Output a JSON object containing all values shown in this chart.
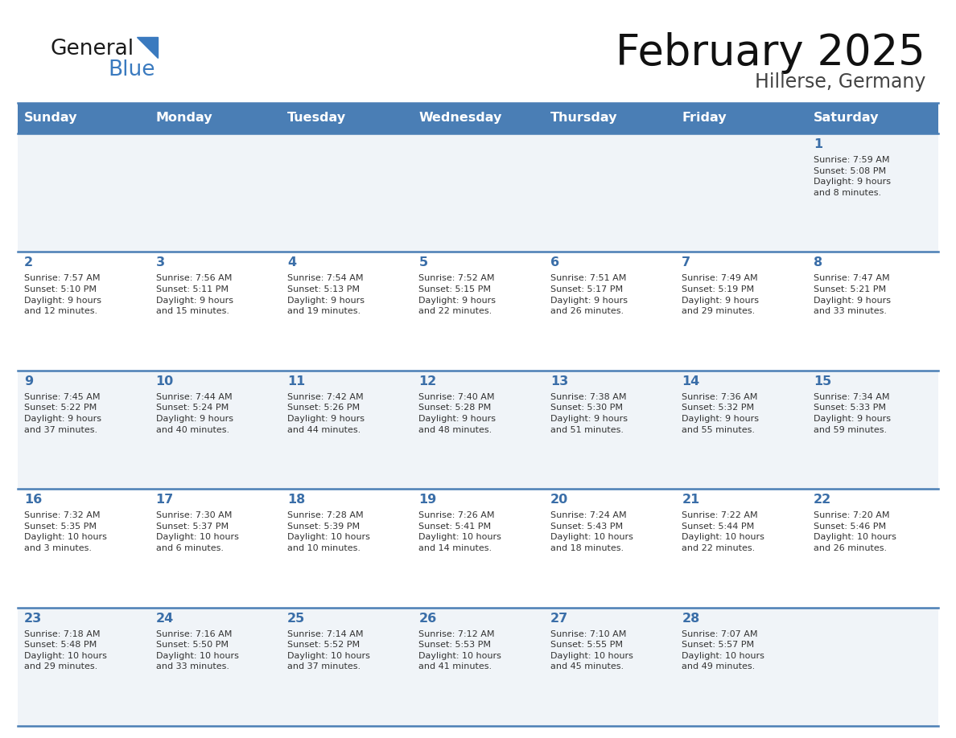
{
  "title": "February 2025",
  "subtitle": "Hillerse, Germany",
  "days_of_week": [
    "Sunday",
    "Monday",
    "Tuesday",
    "Wednesday",
    "Thursday",
    "Friday",
    "Saturday"
  ],
  "header_bg": "#4a7eb5",
  "header_text": "#FFFFFF",
  "row_bg_light": "#f0f4f8",
  "row_bg_white": "#FFFFFF",
  "day_number_color": "#3a6ea8",
  "text_color": "#333333",
  "line_color": "#4a7eb5",
  "calendar_data": [
    [
      null,
      null,
      null,
      null,
      null,
      null,
      {
        "day": 1,
        "sunrise": "7:59 AM",
        "sunset": "5:08 PM",
        "daylight": "9 hours\nand 8 minutes."
      }
    ],
    [
      {
        "day": 2,
        "sunrise": "7:57 AM",
        "sunset": "5:10 PM",
        "daylight": "9 hours\nand 12 minutes."
      },
      {
        "day": 3,
        "sunrise": "7:56 AM",
        "sunset": "5:11 PM",
        "daylight": "9 hours\nand 15 minutes."
      },
      {
        "day": 4,
        "sunrise": "7:54 AM",
        "sunset": "5:13 PM",
        "daylight": "9 hours\nand 19 minutes."
      },
      {
        "day": 5,
        "sunrise": "7:52 AM",
        "sunset": "5:15 PM",
        "daylight": "9 hours\nand 22 minutes."
      },
      {
        "day": 6,
        "sunrise": "7:51 AM",
        "sunset": "5:17 PM",
        "daylight": "9 hours\nand 26 minutes."
      },
      {
        "day": 7,
        "sunrise": "7:49 AM",
        "sunset": "5:19 PM",
        "daylight": "9 hours\nand 29 minutes."
      },
      {
        "day": 8,
        "sunrise": "7:47 AM",
        "sunset": "5:21 PM",
        "daylight": "9 hours\nand 33 minutes."
      }
    ],
    [
      {
        "day": 9,
        "sunrise": "7:45 AM",
        "sunset": "5:22 PM",
        "daylight": "9 hours\nand 37 minutes."
      },
      {
        "day": 10,
        "sunrise": "7:44 AM",
        "sunset": "5:24 PM",
        "daylight": "9 hours\nand 40 minutes."
      },
      {
        "day": 11,
        "sunrise": "7:42 AM",
        "sunset": "5:26 PM",
        "daylight": "9 hours\nand 44 minutes."
      },
      {
        "day": 12,
        "sunrise": "7:40 AM",
        "sunset": "5:28 PM",
        "daylight": "9 hours\nand 48 minutes."
      },
      {
        "day": 13,
        "sunrise": "7:38 AM",
        "sunset": "5:30 PM",
        "daylight": "9 hours\nand 51 minutes."
      },
      {
        "day": 14,
        "sunrise": "7:36 AM",
        "sunset": "5:32 PM",
        "daylight": "9 hours\nand 55 minutes."
      },
      {
        "day": 15,
        "sunrise": "7:34 AM",
        "sunset": "5:33 PM",
        "daylight": "9 hours\nand 59 minutes."
      }
    ],
    [
      {
        "day": 16,
        "sunrise": "7:32 AM",
        "sunset": "5:35 PM",
        "daylight": "10 hours\nand 3 minutes."
      },
      {
        "day": 17,
        "sunrise": "7:30 AM",
        "sunset": "5:37 PM",
        "daylight": "10 hours\nand 6 minutes."
      },
      {
        "day": 18,
        "sunrise": "7:28 AM",
        "sunset": "5:39 PM",
        "daylight": "10 hours\nand 10 minutes."
      },
      {
        "day": 19,
        "sunrise": "7:26 AM",
        "sunset": "5:41 PM",
        "daylight": "10 hours\nand 14 minutes."
      },
      {
        "day": 20,
        "sunrise": "7:24 AM",
        "sunset": "5:43 PM",
        "daylight": "10 hours\nand 18 minutes."
      },
      {
        "day": 21,
        "sunrise": "7:22 AM",
        "sunset": "5:44 PM",
        "daylight": "10 hours\nand 22 minutes."
      },
      {
        "day": 22,
        "sunrise": "7:20 AM",
        "sunset": "5:46 PM",
        "daylight": "10 hours\nand 26 minutes."
      }
    ],
    [
      {
        "day": 23,
        "sunrise": "7:18 AM",
        "sunset": "5:48 PM",
        "daylight": "10 hours\nand 29 minutes."
      },
      {
        "day": 24,
        "sunrise": "7:16 AM",
        "sunset": "5:50 PM",
        "daylight": "10 hours\nand 33 minutes."
      },
      {
        "day": 25,
        "sunrise": "7:14 AM",
        "sunset": "5:52 PM",
        "daylight": "10 hours\nand 37 minutes."
      },
      {
        "day": 26,
        "sunrise": "7:12 AM",
        "sunset": "5:53 PM",
        "daylight": "10 hours\nand 41 minutes."
      },
      {
        "day": 27,
        "sunrise": "7:10 AM",
        "sunset": "5:55 PM",
        "daylight": "10 hours\nand 45 minutes."
      },
      {
        "day": 28,
        "sunrise": "7:07 AM",
        "sunset": "5:57 PM",
        "daylight": "10 hours\nand 49 minutes."
      },
      null
    ]
  ]
}
